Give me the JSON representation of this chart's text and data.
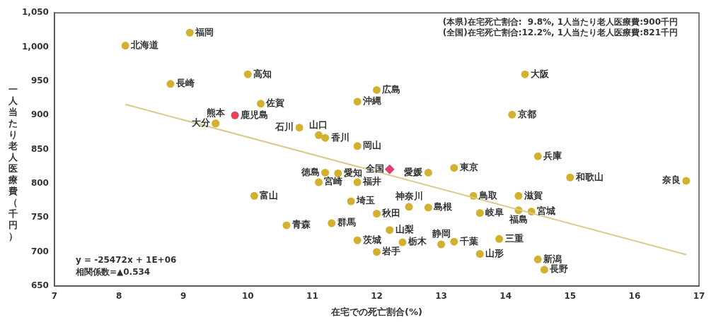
{
  "chart_data": {
    "type": "scatter",
    "xlabel": "在宅での死亡割合(%)",
    "ylabel": "一人当たり老人医療費（千円）",
    "xlim": [
      7,
      17
    ],
    "xticks": [
      7,
      8,
      9,
      10,
      11,
      12,
      13,
      14,
      15,
      16,
      17
    ],
    "ylim": [
      650,
      1050
    ],
    "yticks": [
      650,
      700,
      750,
      800,
      850,
      900,
      950,
      {
        "value": 1000,
        "label": "1,000"
      },
      {
        "value": 1050,
        "label": "1,050"
      }
    ],
    "grid": false,
    "legend": false,
    "annotations": [
      "(本県)在宅死亡割合:  9.8%, 1人当たり老人医療費:900千円",
      "(全国)在宅死亡割合:12.2%, 1人当たり老人医療費:821千円",
      "y = -25472x + 1E+06",
      "相関係数=▲0.534"
    ],
    "series": [
      {
        "type": "line",
        "color": "#d9cb8f",
        "marker": "none",
        "x": [
          8.1,
          16.8
        ],
        "values": [
          916,
          696
        ]
      },
      {
        "color": "#d4b030",
        "marker": "circle",
        "x": [
          8.1,
          9.1,
          8.8,
          10.0,
          10.2,
          9.5,
          9.5,
          10.8,
          11.1,
          11.2,
          11.7,
          12.0,
          11.7,
          14.3,
          14.1,
          14.5,
          11.2,
          11.4,
          11.1,
          11.7,
          10.1,
          11.6,
          12.0,
          12.5,
          12.8,
          12.8,
          13.2,
          13.5,
          13.6,
          14.2,
          14.2,
          14.4,
          15.0,
          16.8,
          10.6,
          11.3,
          12.2,
          11.7,
          12.4,
          12.0,
          13.0,
          13.2,
          13.6,
          13.9,
          14.5,
          14.6
        ],
        "values": [
          1002,
          1021,
          946,
          960,
          917,
          888,
          888,
          882,
          871,
          867,
          855,
          937,
          920,
          960,
          901,
          840,
          816,
          815,
          802,
          802,
          782,
          774,
          756,
          766,
          765,
          816,
          823,
          782,
          757,
          782,
          761,
          759,
          809,
          804,
          739,
          742,
          732,
          717,
          714,
          700,
          711,
          715,
          697,
          719,
          689,
          674
        ],
        "value_labels": [
          "北海道",
          "福岡",
          "長崎",
          "高知",
          "佐賀",
          "大分",
          "熊本",
          "石川",
          "山口",
          "香川",
          "岡山",
          "広島",
          "沖縄",
          "大阪",
          "京都",
          "兵庫",
          "徳島",
          "愛知",
          "宮崎",
          "福井",
          "富山",
          "埼玉",
          "秋田",
          "神奈川",
          "島根",
          "愛媛",
          "東京",
          "鳥取",
          "岐阜",
          "滋賀",
          "福島",
          "宮城",
          "和歌山",
          "奈良",
          "青森",
          "群馬",
          "山梨",
          "茨城",
          "栃木",
          "岩手",
          "静岡",
          "千葉",
          "山形",
          "三重",
          "新潟",
          "長野"
        ]
      },
      {
        "color": "#e84250",
        "marker": "circle",
        "x": [
          9.8
        ],
        "values": [
          900
        ],
        "value_labels": [
          "鹿児島"
        ]
      },
      {
        "color": "#e0406a",
        "marker": "diamond",
        "x": [
          12.2
        ],
        "values": [
          821
        ],
        "value_labels": [
          "全国"
        ]
      }
    ]
  }
}
